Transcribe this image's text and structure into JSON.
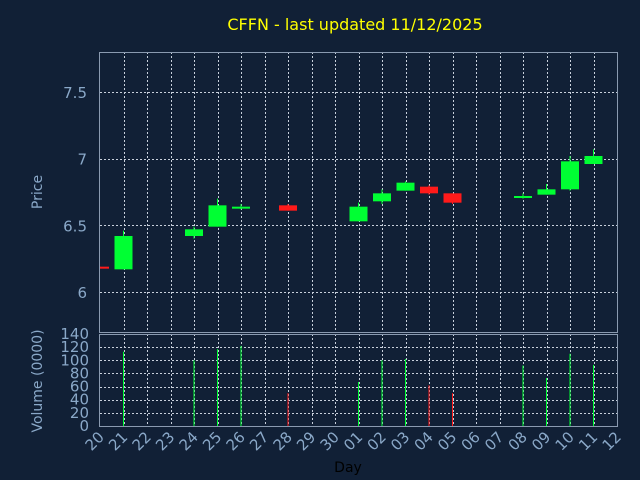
{
  "chart_data": [
    {
      "type": "candlestick",
      "title": "CFFN - last updated 11/12/2025",
      "ylabel": "Price",
      "ylim": [
        5.7,
        7.8
      ],
      "yticks": [
        "6",
        "6.5",
        "7",
        "7.5"
      ],
      "ytick_values": [
        6,
        6.5,
        7,
        7.5
      ],
      "grid": true,
      "x": [
        "20",
        "21",
        "22",
        "23",
        "24",
        "25",
        "26",
        "27",
        "28",
        "29",
        "30",
        "01",
        "02",
        "03",
        "04",
        "05",
        "06",
        "07",
        "08",
        "09",
        "10",
        "11",
        "12"
      ],
      "candles": [
        {
          "x": "20",
          "open": 6.19,
          "high": 6.19,
          "low": 6.18,
          "close": 6.18,
          "dir": "down"
        },
        {
          "x": "21",
          "open": 6.17,
          "high": 6.46,
          "low": 6.17,
          "close": 6.42,
          "dir": "up"
        },
        {
          "x": "24",
          "open": 6.42,
          "high": 6.49,
          "low": 6.4,
          "close": 6.47,
          "dir": "up"
        },
        {
          "x": "25",
          "open": 6.49,
          "high": 6.7,
          "low": 6.49,
          "close": 6.65,
          "dir": "up"
        },
        {
          "x": "26",
          "open": 6.63,
          "high": 6.66,
          "low": 6.62,
          "close": 6.64,
          "dir": "up"
        },
        {
          "x": "28",
          "open": 6.65,
          "high": 6.66,
          "low": 6.61,
          "close": 6.61,
          "dir": "down"
        },
        {
          "x": "01",
          "open": 6.53,
          "high": 6.67,
          "low": 6.53,
          "close": 6.64,
          "dir": "up"
        },
        {
          "x": "02",
          "open": 6.68,
          "high": 6.77,
          "low": 6.66,
          "close": 6.74,
          "dir": "up"
        },
        {
          "x": "03",
          "open": 6.76,
          "high": 6.83,
          "low": 6.76,
          "close": 6.82,
          "dir": "up"
        },
        {
          "x": "04",
          "open": 6.79,
          "high": 6.8,
          "low": 6.73,
          "close": 6.74,
          "dir": "down"
        },
        {
          "x": "05",
          "open": 6.74,
          "high": 6.74,
          "low": 6.66,
          "close": 6.67,
          "dir": "down"
        },
        {
          "x": "08",
          "open": 6.71,
          "high": 6.74,
          "low": 6.7,
          "close": 6.72,
          "dir": "up"
        },
        {
          "x": "09",
          "open": 6.73,
          "high": 6.81,
          "low": 6.73,
          "close": 6.77,
          "dir": "up"
        },
        {
          "x": "10",
          "open": 6.77,
          "high": 7.02,
          "low": 6.76,
          "close": 6.98,
          "dir": "up"
        },
        {
          "x": "11",
          "open": 6.96,
          "high": 7.07,
          "low": 6.96,
          "close": 7.02,
          "dir": "up"
        }
      ]
    },
    {
      "type": "bar",
      "ylabel": "Volume (0000)",
      "xlabel": "Day",
      "ylim": [
        0,
        140
      ],
      "yticks": [
        "0",
        "20",
        "40",
        "60",
        "80",
        "100",
        "120",
        "140"
      ],
      "ytick_values": [
        0,
        20,
        40,
        60,
        80,
        100,
        120,
        140
      ],
      "grid": true,
      "categories": [
        "20",
        "21",
        "22",
        "23",
        "24",
        "25",
        "26",
        "27",
        "28",
        "29",
        "30",
        "01",
        "02",
        "03",
        "04",
        "05",
        "06",
        "07",
        "08",
        "09",
        "10",
        "11",
        "12"
      ],
      "bars": [
        {
          "x": "21",
          "value": 113,
          "dir": "up"
        },
        {
          "x": "24",
          "value": 100,
          "dir": "up"
        },
        {
          "x": "25",
          "value": 117,
          "dir": "up"
        },
        {
          "x": "26",
          "value": 122,
          "dir": "up"
        },
        {
          "x": "28",
          "value": 50,
          "dir": "down"
        },
        {
          "x": "01",
          "value": 67,
          "dir": "up"
        },
        {
          "x": "02",
          "value": 100,
          "dir": "up"
        },
        {
          "x": "03",
          "value": 102,
          "dir": "up"
        },
        {
          "x": "04",
          "value": 62,
          "dir": "down"
        },
        {
          "x": "05",
          "value": 50,
          "dir": "down"
        },
        {
          "x": "08",
          "value": 92,
          "dir": "up"
        },
        {
          "x": "09",
          "value": 73,
          "dir": "up"
        },
        {
          "x": "10",
          "value": 110,
          "dir": "up"
        },
        {
          "x": "11",
          "value": 93,
          "dir": "up"
        }
      ]
    }
  ],
  "colors": {
    "background": "#112036",
    "up": "#00ff33",
    "down": "#ff1a1a",
    "title": "#ffff00",
    "axis_text": "#8aa8c8"
  }
}
